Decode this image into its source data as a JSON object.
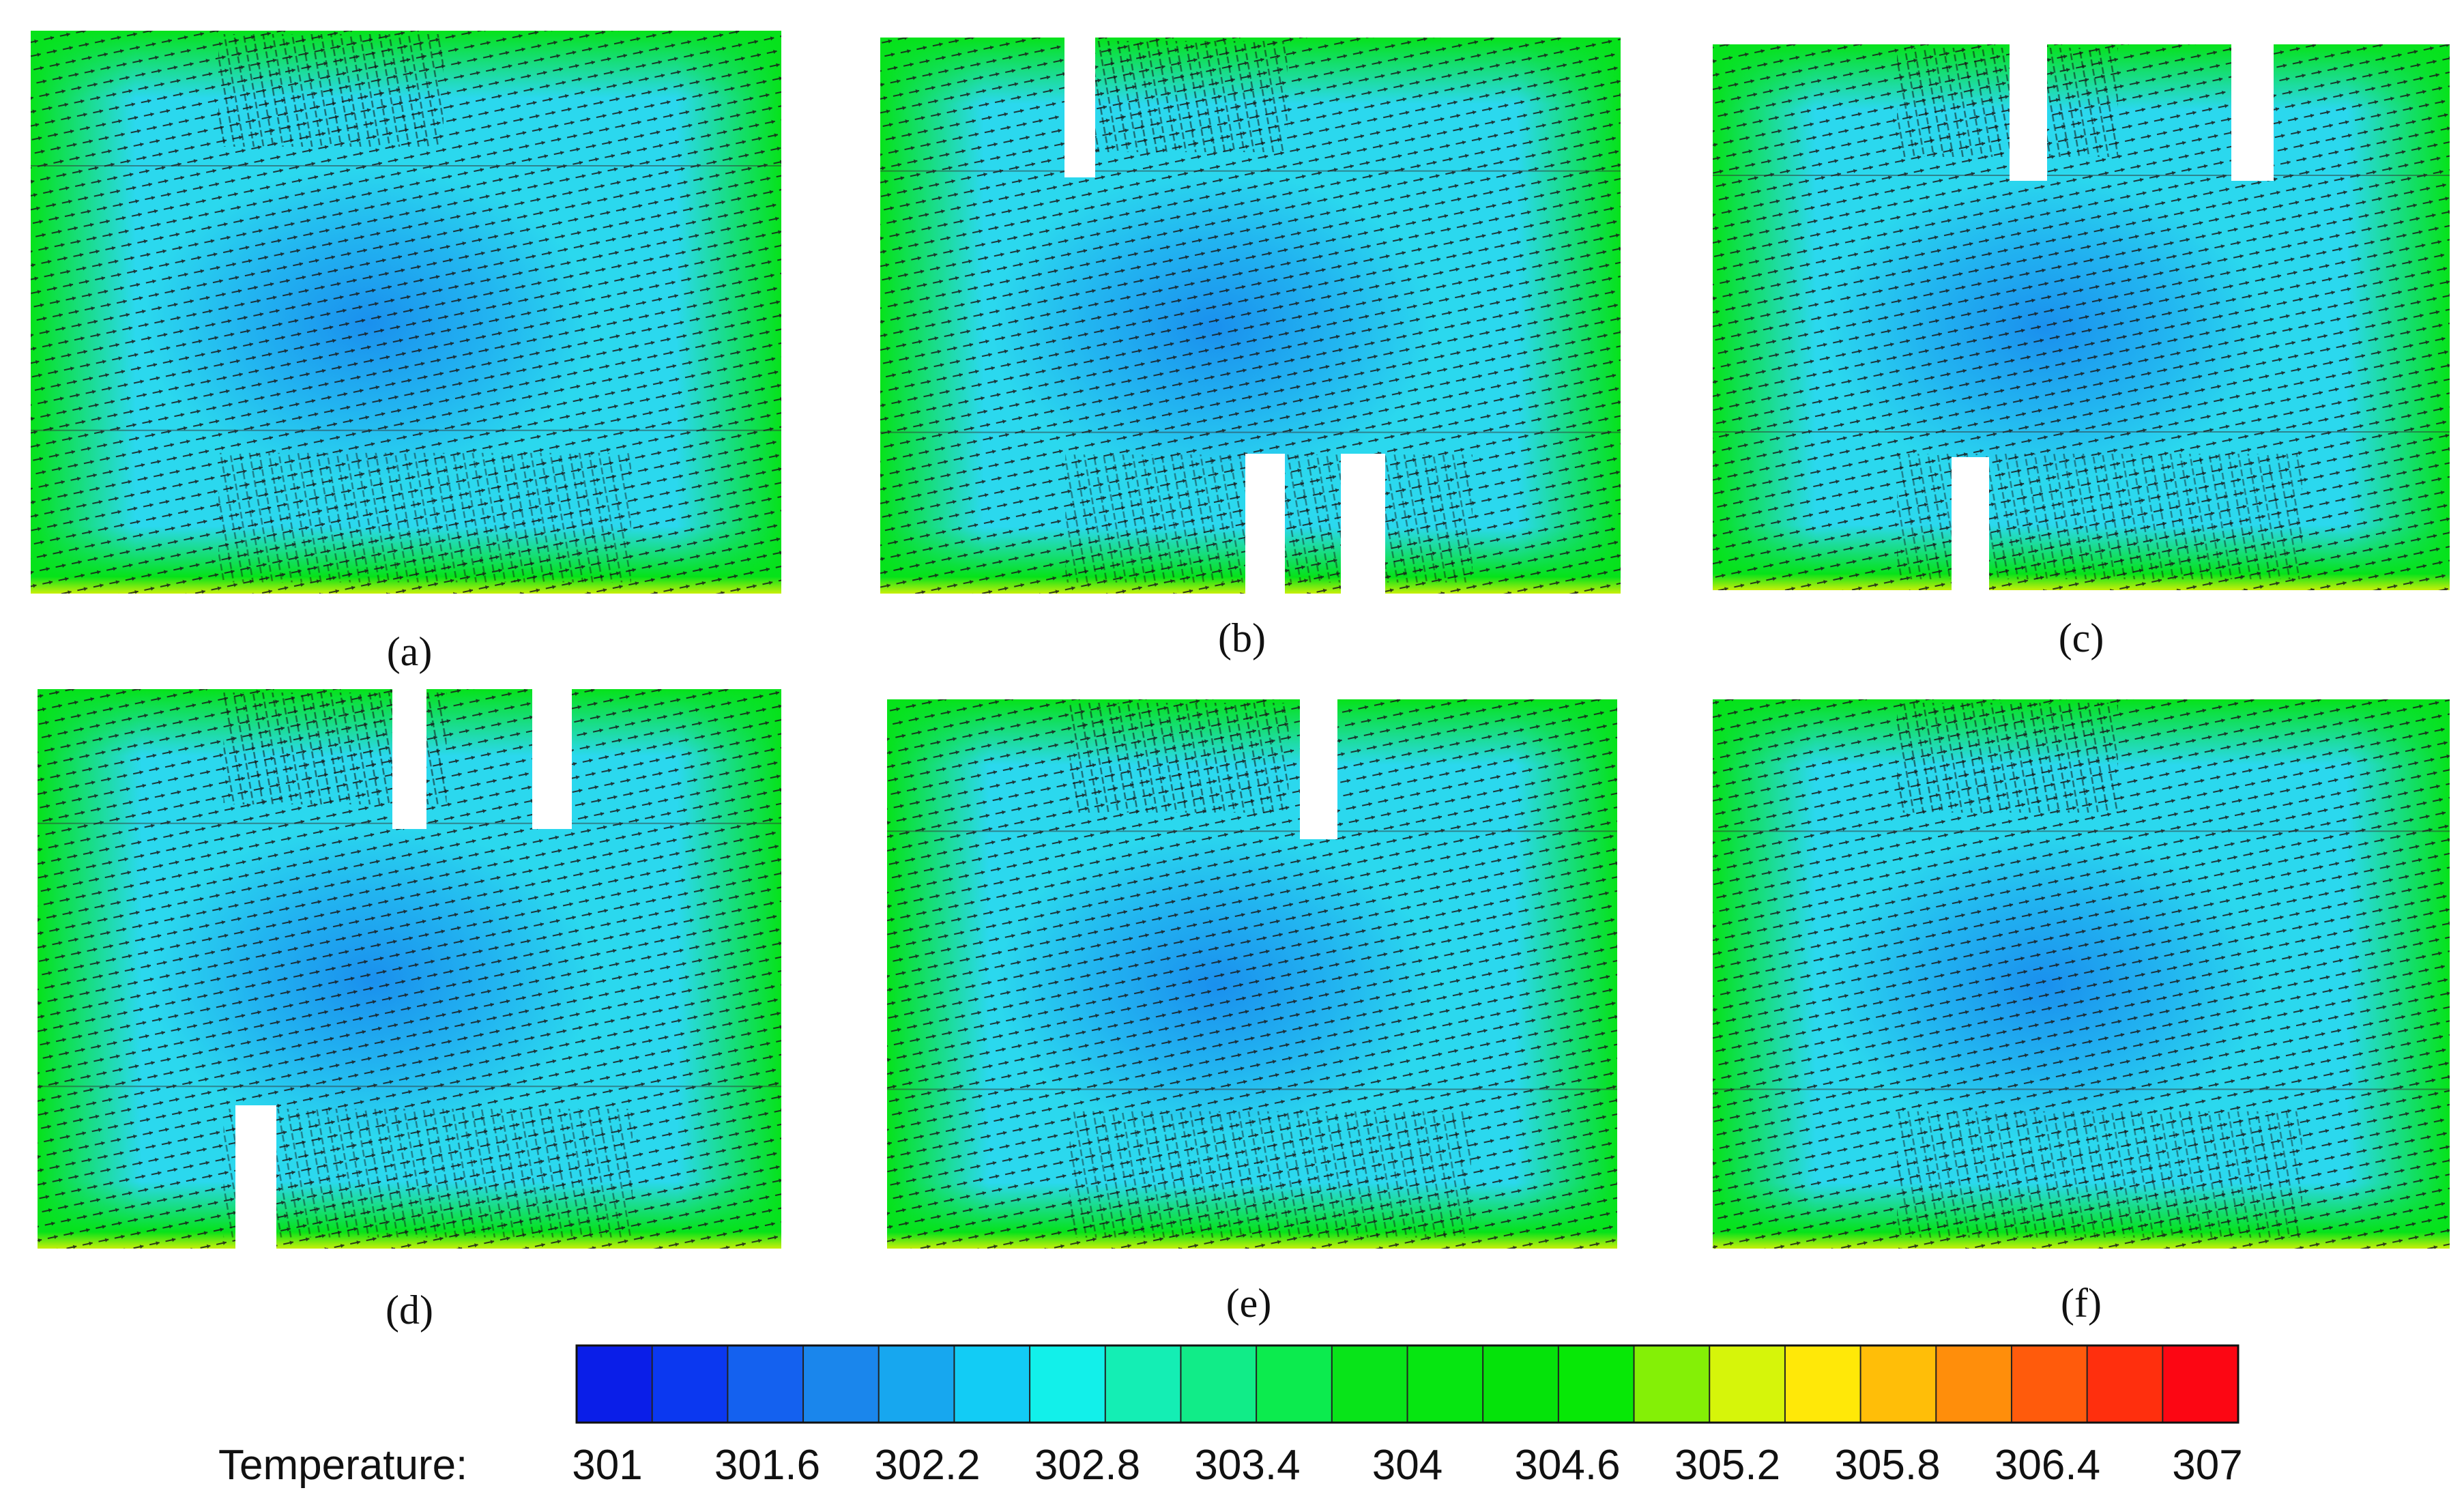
{
  "panels": [
    {
      "label": "(a)"
    },
    {
      "label": "(b)"
    },
    {
      "label": "(c)"
    },
    {
      "label": "(d)"
    },
    {
      "label": "(e)"
    },
    {
      "label": "(f)"
    }
  ],
  "colorbar": {
    "title": "Temperature:",
    "ticks": [
      "301",
      "301.6",
      "302.2",
      "302.8",
      "303.4",
      "304",
      "304.6",
      "305.2",
      "305.8",
      "306.4",
      "307"
    ],
    "colors": [
      "#0a1ee8",
      "#0b38f0",
      "#1461ef",
      "#1a86ec",
      "#17a7ef",
      "#12ccf5",
      "#12f0ea",
      "#14eeb4",
      "#11ec88",
      "#0ceb4e",
      "#08e419",
      "#06e611",
      "#05e30a",
      "#07e806",
      "#84f006",
      "#d6f50a",
      "#ffe808",
      "#ffbe08",
      "#ff8e0b",
      "#ff5b0c",
      "#ff2f0d",
      "#fc0613"
    ]
  }
}
